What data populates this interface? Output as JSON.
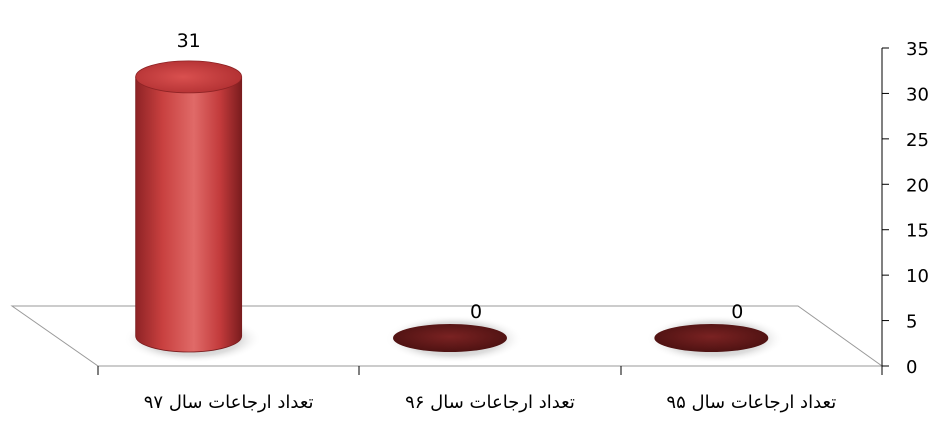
{
  "chart_data": {
    "type": "bar",
    "title": "",
    "xlabel": "",
    "ylabel": "",
    "categories": [
      "تعداد ارجاعات سال ۹۷",
      "تعداد ارجاعات سال ۹۶",
      "تعداد ارجاعات سال ۹۵"
    ],
    "values": [
      31,
      0,
      0
    ],
    "data_labels": [
      "31",
      "0",
      "0"
    ],
    "ylim": [
      0,
      35
    ],
    "yticks": [
      "0",
      "5",
      "10",
      "15",
      "20",
      "25",
      "30",
      "35"
    ],
    "y_axis_position": "right",
    "bar_style": "3d-cylinder",
    "grid": false,
    "legend": "none",
    "colors": {
      "bar": "#c0393b",
      "bar_light": "#ef7a78",
      "bar_dark": "#7a1c1e",
      "empty_ellipse": "#6b1b1b",
      "axis": "#000000"
    }
  }
}
